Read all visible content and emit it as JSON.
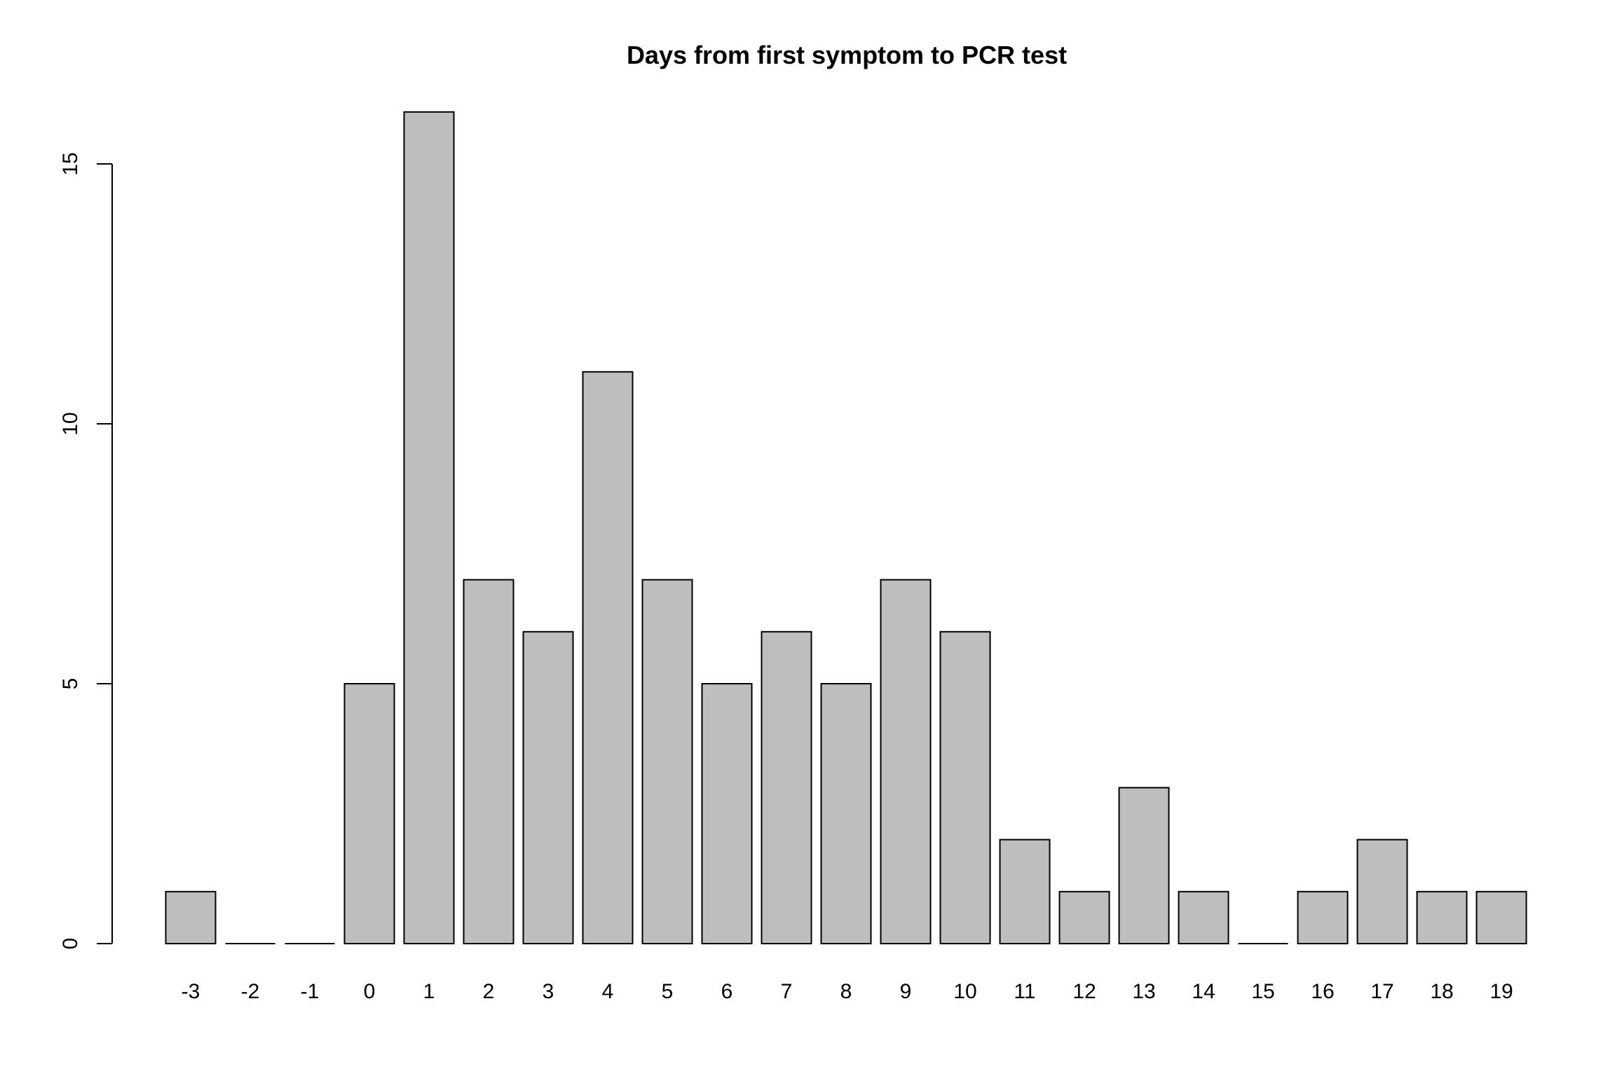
{
  "chart_data": {
    "type": "bar",
    "title": "Days from first symptom to PCR test",
    "xlabel": "",
    "ylabel": "",
    "categories": [
      "-3",
      "-2",
      "-1",
      "0",
      "1",
      "2",
      "3",
      "4",
      "5",
      "6",
      "7",
      "8",
      "9",
      "10",
      "11",
      "12",
      "13",
      "14",
      "15",
      "16",
      "17",
      "18",
      "19"
    ],
    "values": [
      1,
      0,
      0,
      5,
      16,
      7,
      6,
      11,
      7,
      5,
      6,
      5,
      7,
      6,
      2,
      1,
      3,
      1,
      0,
      1,
      2,
      1,
      1
    ],
    "yticks": [
      "0",
      "5",
      "10",
      "15"
    ],
    "ylim": [
      0,
      16
    ],
    "grid": false,
    "colors": {
      "bar_fill": "#bebebe",
      "bar_stroke": "#000000",
      "background": "#ffffff"
    }
  }
}
